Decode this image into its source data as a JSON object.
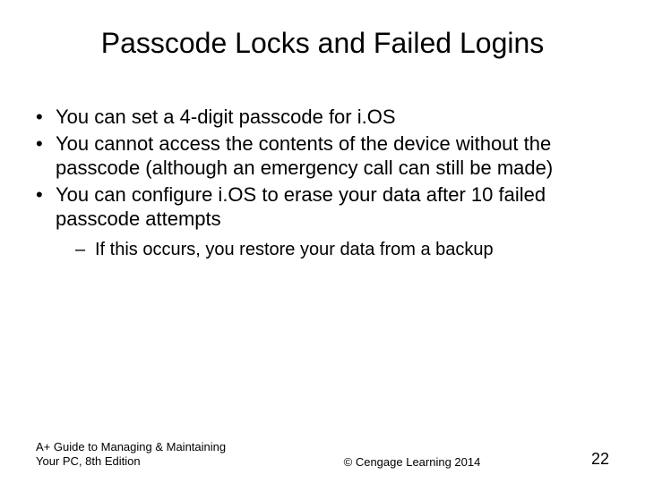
{
  "title": "Passcode Locks and Failed Logins",
  "bullets": [
    "You can set a 4-digit passcode for i.OS",
    "You cannot access the contents of the device without the passcode (although an emergency call can still be made)",
    "You can configure i.OS to erase your data after 10 failed passcode attempts"
  ],
  "subBullets": [
    "If this occurs, you restore your data from a backup"
  ],
  "footer": {
    "left": "A+ Guide to Managing & Maintaining Your PC, 8th Edition",
    "center": "© Cengage Learning 2014",
    "pageNumber": "22"
  },
  "styling": {
    "background_color": "#ffffff",
    "text_color": "#000000",
    "title_fontsize": 32,
    "body_fontsize": 22,
    "sub_fontsize": 20,
    "footer_fontsize": 13,
    "page_number_fontsize": 18,
    "font_family": "Arial"
  }
}
